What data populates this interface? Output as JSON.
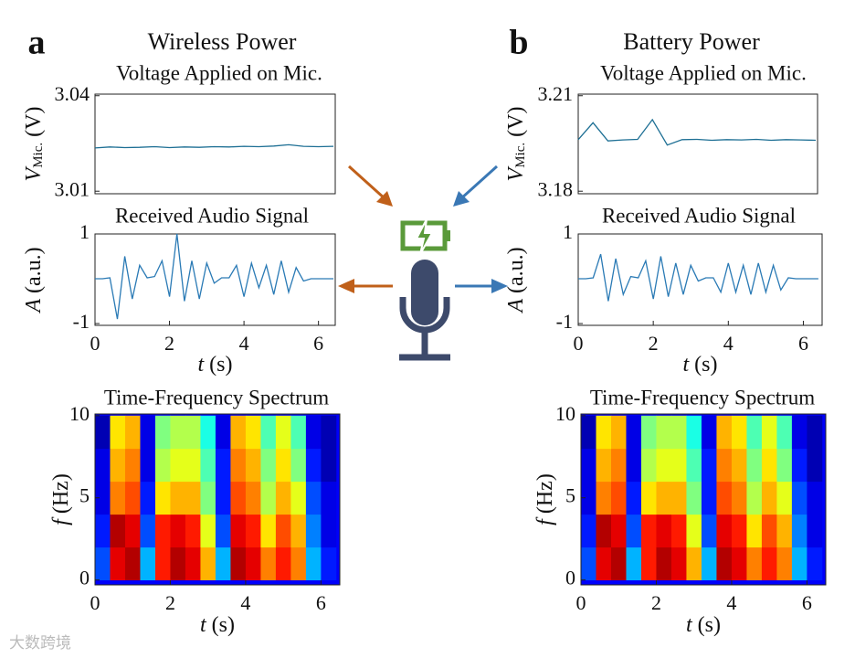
{
  "panels": [
    {
      "label": "a",
      "title": "Wireless Power"
    },
    {
      "label": "b",
      "title": "Battery Power"
    }
  ],
  "watermark": "大数跨境",
  "chart_data": [
    {
      "type": "line",
      "title": "Voltage Applied on Mic.",
      "ylabel": {
        "symbol": "V",
        "subscript": "Mic.",
        "unit": "(V)"
      },
      "x": [
        0,
        0.4,
        0.8,
        1.2,
        1.6,
        2.0,
        2.4,
        2.8,
        3.2,
        3.6,
        4.0,
        4.4,
        4.8,
        5.2,
        5.6,
        6.0,
        6.4
      ],
      "values": [
        3.0236,
        3.0239,
        3.0237,
        3.0238,
        3.024,
        3.0237,
        3.0239,
        3.0238,
        3.024,
        3.0239,
        3.0241,
        3.024,
        3.0242,
        3.0246,
        3.0241,
        3.024,
        3.0241
      ],
      "color": "#1d6f94",
      "xlim": [
        0,
        6.45
      ],
      "ylim": [
        3.0092,
        3.0405
      ],
      "yticks": [
        3.01,
        3.04
      ]
    },
    {
      "type": "line",
      "title": "Received Audio Signal",
      "ylabel": {
        "symbol": "A",
        "unit": "(a.u.)"
      },
      "xlabel": {
        "symbol": "t",
        "unit": "(s)"
      },
      "x": [
        0,
        0.2,
        0.4,
        0.6,
        0.8,
        1.0,
        1.2,
        1.4,
        1.6,
        1.8,
        2.0,
        2.2,
        2.4,
        2.6,
        2.8,
        3.0,
        3.2,
        3.4,
        3.6,
        3.8,
        4.0,
        4.2,
        4.4,
        4.6,
        4.8,
        5.0,
        5.2,
        5.4,
        5.6,
        5.8,
        6.0,
        6.2,
        6.4
      ],
      "values": [
        0,
        0,
        0.02,
        -0.9,
        0.5,
        -0.45,
        0.3,
        0.02,
        0.05,
        0.4,
        -0.4,
        1.0,
        -0.5,
        0.4,
        -0.45,
        0.35,
        -0.1,
        0.02,
        0.02,
        0.3,
        -0.4,
        0.35,
        -0.2,
        0.3,
        -0.35,
        0.4,
        -0.3,
        0.25,
        -0.05,
        0,
        0,
        0,
        0
      ],
      "color": "#2a7ab5",
      "xlim": [
        0,
        6.45
      ],
      "ylim": [
        -1.04,
        1
      ],
      "xticks": [
        0,
        2,
        4,
        6
      ],
      "yticks": [
        -1,
        1
      ]
    },
    {
      "type": "heatmap",
      "title": "Time-Frequency Spectrum",
      "ylabel": {
        "symbol": "f",
        "unit": "(Hz)"
      },
      "xlabel": {
        "symbol": "t",
        "unit": "(s)"
      },
      "times": [
        0.2,
        0.6,
        1.0,
        1.4,
        1.8,
        2.2,
        2.6,
        3.0,
        3.4,
        3.8,
        4.2,
        4.6,
        5.0,
        5.4,
        5.8,
        6.2
      ],
      "frequencies": [
        1,
        3,
        5,
        7,
        9
      ],
      "z": [
        [
          0.2,
          0.9,
          0.95,
          0.3,
          0.85,
          0.95,
          0.9,
          0.7,
          0.3,
          0.95,
          0.9,
          0.75,
          0.85,
          0.75,
          0.3,
          0.15
        ],
        [
          0.15,
          0.95,
          0.9,
          0.2,
          0.85,
          0.9,
          0.85,
          0.6,
          0.2,
          0.9,
          0.85,
          0.65,
          0.8,
          0.7,
          0.25,
          0.1
        ],
        [
          0.1,
          0.75,
          0.8,
          0.15,
          0.65,
          0.7,
          0.7,
          0.5,
          0.15,
          0.8,
          0.75,
          0.55,
          0.7,
          0.6,
          0.2,
          0.1
        ],
        [
          0.1,
          0.7,
          0.75,
          0.1,
          0.55,
          0.6,
          0.6,
          0.45,
          0.15,
          0.75,
          0.7,
          0.5,
          0.65,
          0.5,
          0.15,
          0.05
        ],
        [
          0.05,
          0.65,
          0.7,
          0.1,
          0.5,
          0.55,
          0.55,
          0.4,
          0.1,
          0.7,
          0.65,
          0.45,
          0.6,
          0.45,
          0.1,
          0.05
        ]
      ],
      "colormap": "jet",
      "xlim": [
        0,
        6.5
      ],
      "ylim": [
        -0.3,
        10.1
      ],
      "xticks": [
        0,
        2,
        4,
        6
      ],
      "yticks": [
        0,
        5,
        10
      ]
    },
    {
      "type": "line",
      "title": "Voltage Applied on Mic.",
      "ylabel": {
        "symbol": "V",
        "subscript": "Mic.",
        "unit": "(V)"
      },
      "x": [
        0,
        0.4,
        0.8,
        1.2,
        1.6,
        2.0,
        2.4,
        2.8,
        3.2,
        3.6,
        4.0,
        4.4,
        4.8,
        5.2,
        5.6,
        6.0,
        6.4
      ],
      "values": [
        3.1962,
        3.2015,
        3.1958,
        3.1961,
        3.1963,
        3.2025,
        3.1945,
        3.1962,
        3.1963,
        3.196,
        3.1962,
        3.1961,
        3.1963,
        3.196,
        3.1962,
        3.1961,
        3.196
      ],
      "color": "#1d6f94",
      "xlim": [
        0,
        6.45
      ],
      "ylim": [
        3.1792,
        3.2105
      ],
      "yticks": [
        3.18,
        3.21
      ]
    },
    {
      "type": "line",
      "title": "Received Audio Signal",
      "ylabel": {
        "symbol": "A",
        "unit": "(a.u.)"
      },
      "xlabel": {
        "symbol": "t",
        "unit": "(s)"
      },
      "x": [
        0,
        0.2,
        0.4,
        0.6,
        0.8,
        1.0,
        1.2,
        1.4,
        1.6,
        1.8,
        2.0,
        2.2,
        2.4,
        2.6,
        2.8,
        3.0,
        3.2,
        3.4,
        3.6,
        3.8,
        4.0,
        4.2,
        4.4,
        4.6,
        4.8,
        5.0,
        5.2,
        5.4,
        5.6,
        5.8,
        6.0,
        6.2,
        6.4
      ],
      "values": [
        0,
        0,
        0.02,
        0.55,
        -0.5,
        0.45,
        -0.35,
        0.05,
        0.02,
        0.4,
        -0.45,
        0.5,
        -0.4,
        0.35,
        -0.35,
        0.3,
        -0.05,
        0.02,
        0.02,
        -0.3,
        0.35,
        -0.3,
        0.3,
        -0.35,
        0.35,
        -0.3,
        0.3,
        -0.25,
        0.02,
        0,
        0,
        0,
        0
      ],
      "color": "#2a7ab5",
      "xlim": [
        0,
        6.5
      ],
      "ylim": [
        -1.04,
        1
      ],
      "xticks": [
        0,
        2,
        4,
        6
      ],
      "yticks": [
        -1,
        1
      ]
    },
    {
      "type": "heatmap",
      "title": "Time-Frequency Spectrum",
      "ylabel": {
        "symbol": "f",
        "unit": "(Hz)"
      },
      "xlabel": {
        "symbol": "t",
        "unit": "(s)"
      },
      "times": [
        0.2,
        0.6,
        1.0,
        1.4,
        1.8,
        2.2,
        2.6,
        3.0,
        3.4,
        3.8,
        4.2,
        4.6,
        5.0,
        5.4,
        5.8,
        6.2
      ],
      "frequencies": [
        1,
        3,
        5,
        7,
        9
      ],
      "z": [
        [
          0.2,
          0.9,
          0.95,
          0.3,
          0.85,
          0.95,
          0.9,
          0.7,
          0.3,
          0.95,
          0.9,
          0.75,
          0.85,
          0.75,
          0.3,
          0.15
        ],
        [
          0.15,
          0.95,
          0.9,
          0.2,
          0.85,
          0.9,
          0.85,
          0.6,
          0.2,
          0.9,
          0.85,
          0.65,
          0.8,
          0.7,
          0.25,
          0.1
        ],
        [
          0.1,
          0.75,
          0.8,
          0.15,
          0.65,
          0.7,
          0.7,
          0.5,
          0.15,
          0.8,
          0.75,
          0.55,
          0.7,
          0.6,
          0.2,
          0.1
        ],
        [
          0.1,
          0.7,
          0.75,
          0.1,
          0.55,
          0.6,
          0.6,
          0.45,
          0.15,
          0.75,
          0.7,
          0.5,
          0.65,
          0.5,
          0.15,
          0.05
        ],
        [
          0.05,
          0.65,
          0.7,
          0.1,
          0.5,
          0.55,
          0.55,
          0.4,
          0.1,
          0.7,
          0.65,
          0.45,
          0.6,
          0.45,
          0.1,
          0.05
        ]
      ],
      "colormap": "jet",
      "xlim": [
        0,
        6.5
      ],
      "ylim": [
        -0.3,
        10.1
      ],
      "xticks": [
        0,
        2,
        4,
        6
      ],
      "yticks": [
        0,
        5,
        10
      ]
    }
  ]
}
